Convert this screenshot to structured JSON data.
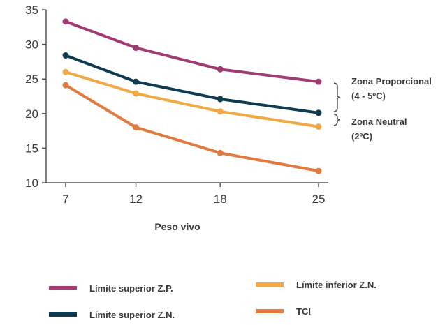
{
  "chart_data": {
    "type": "line",
    "xlabel": "Peso vivo",
    "ylabel": "",
    "x": [
      7,
      12,
      18,
      25
    ],
    "x_tick_labels": [
      "7",
      "12",
      "18",
      "25"
    ],
    "ylim": [
      10,
      35
    ],
    "y_ticks": [
      10,
      15,
      20,
      25,
      30,
      35
    ],
    "grid": false,
    "legend_position": "bottom",
    "series": [
      {
        "name": "Límite superior Z.P.",
        "color": "#a23b72",
        "values": [
          33.3,
          29.5,
          26.4,
          24.6
        ]
      },
      {
        "name": "Límite superior Z.N.",
        "color": "#0e3b4f",
        "values": [
          28.4,
          24.6,
          22.1,
          20.1
        ]
      },
      {
        "name": "Límite inferior Z.N.",
        "color": "#f0aa45",
        "values": [
          26.0,
          22.9,
          20.3,
          18.1
        ]
      },
      {
        "name": "TCI",
        "color": "#e07a3f",
        "values": [
          24.1,
          18.0,
          14.3,
          11.7
        ]
      }
    ],
    "annotations": [
      {
        "lines": [
          "Zona Proporcional",
          "(4 - 5ºC)"
        ],
        "bracket_between": [
          24.6,
          20.1
        ]
      },
      {
        "lines": [
          "Zona Neutral",
          "(2ºC)"
        ],
        "bracket_between": [
          20.1,
          18.1
        ]
      }
    ]
  }
}
